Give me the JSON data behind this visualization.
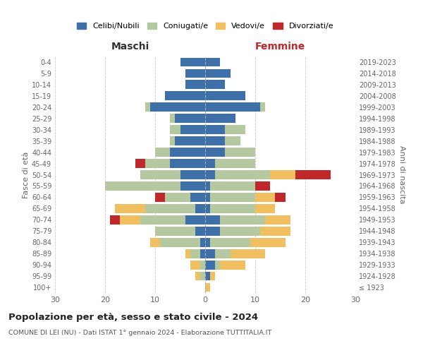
{
  "age_groups": [
    "100+",
    "95-99",
    "90-94",
    "85-89",
    "80-84",
    "75-79",
    "70-74",
    "65-69",
    "60-64",
    "55-59",
    "50-54",
    "45-49",
    "40-44",
    "35-39",
    "30-34",
    "25-29",
    "20-24",
    "15-19",
    "10-14",
    "5-9",
    "0-4"
  ],
  "birth_years": [
    "≤ 1923",
    "1924-1928",
    "1929-1933",
    "1934-1938",
    "1939-1943",
    "1944-1948",
    "1949-1953",
    "1954-1958",
    "1959-1963",
    "1964-1968",
    "1969-1973",
    "1974-1978",
    "1979-1983",
    "1984-1988",
    "1989-1993",
    "1994-1998",
    "1999-2003",
    "2004-2008",
    "2009-2013",
    "2014-2018",
    "2019-2023"
  ],
  "colors": {
    "celibi": "#3d6fa8",
    "coniugati": "#b5c9a0",
    "vedovi": "#f0c060",
    "divorziati": "#c0282a"
  },
  "maschi": {
    "celibi": [
      0,
      0,
      0,
      1,
      1,
      2,
      4,
      2,
      3,
      5,
      5,
      7,
      7,
      6,
      5,
      6,
      11,
      8,
      4,
      4,
      5
    ],
    "coniugati": [
      0,
      1,
      1,
      2,
      8,
      8,
      9,
      10,
      5,
      15,
      8,
      5,
      3,
      1,
      2,
      1,
      1,
      0,
      0,
      0,
      0
    ],
    "vedovi": [
      0,
      1,
      2,
      1,
      2,
      0,
      4,
      6,
      0,
      0,
      0,
      0,
      0,
      0,
      0,
      0,
      0,
      0,
      0,
      0,
      0
    ],
    "divorziati": [
      0,
      0,
      0,
      0,
      0,
      0,
      2,
      0,
      2,
      0,
      0,
      2,
      0,
      0,
      0,
      0,
      0,
      0,
      0,
      0,
      0
    ]
  },
  "femmine": {
    "celibi": [
      0,
      1,
      2,
      2,
      1,
      3,
      3,
      1,
      1,
      1,
      2,
      2,
      4,
      4,
      4,
      6,
      11,
      8,
      4,
      5,
      3
    ],
    "coniugati": [
      0,
      0,
      1,
      3,
      8,
      8,
      9,
      9,
      9,
      9,
      11,
      8,
      6,
      3,
      4,
      0,
      1,
      0,
      0,
      0,
      0
    ],
    "vedovi": [
      1,
      1,
      5,
      7,
      7,
      6,
      5,
      4,
      4,
      0,
      5,
      0,
      0,
      0,
      0,
      0,
      0,
      0,
      0,
      0,
      0
    ],
    "divorziati": [
      0,
      0,
      0,
      0,
      0,
      0,
      0,
      0,
      2,
      3,
      7,
      0,
      0,
      0,
      0,
      0,
      0,
      0,
      0,
      0,
      0
    ]
  },
  "title": "Popolazione per età, sesso e stato civile - 2024",
  "subtitle": "COMUNE DI LEI (NU) - Dati ISTAT 1° gennaio 2024 - Elaborazione TUTTITALIA.IT",
  "legend_labels": [
    "Celibi/Nubili",
    "Coniugati/e",
    "Vedovi/e",
    "Divorziati/e"
  ],
  "xlabel_left": "Maschi",
  "xlabel_right": "Femmine",
  "ylabel_left": "Fasce di età",
  "ylabel_right": "Anni di nascita",
  "xlim": 30,
  "background_color": "#ffffff",
  "grid_color": "#cccccc"
}
